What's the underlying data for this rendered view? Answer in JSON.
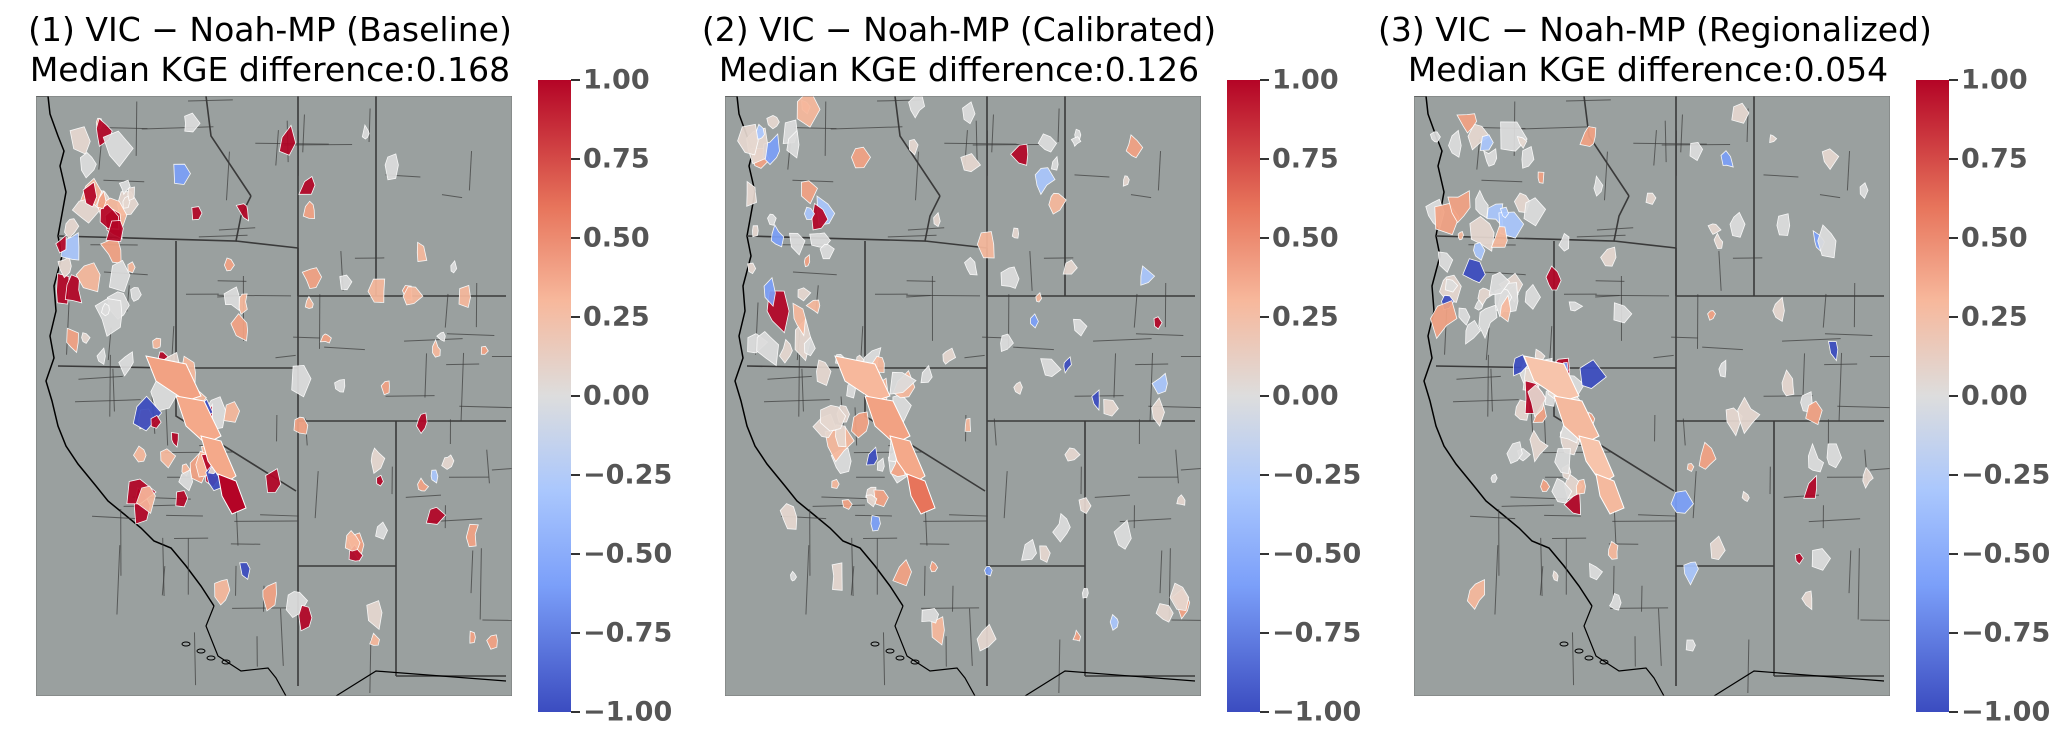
{
  "figure": {
    "panels": [
      {
        "title": "(1) VIC − Noah-MP (Baseline)",
        "subtitle": "Median KGE difference:0.168",
        "median_kge_difference": 0.168
      },
      {
        "title": "(2) VIC − Noah-MP (Calibrated)",
        "subtitle": "Median KGE difference:0.126",
        "median_kge_difference": 0.126
      },
      {
        "title": "(3) VIC − Noah-MP (Regionalized)",
        "subtitle": "Median KGE difference:0.054",
        "median_kge_difference": 0.054
      }
    ],
    "colorbar": {
      "colormap": "coolwarm",
      "range": [
        -1.0,
        1.0
      ],
      "ticks": [
        "1.00",
        "0.75",
        "0.50",
        "0.25",
        "0.00",
        "−0.25",
        "−0.50",
        "−0.75",
        "−1.00"
      ],
      "colors": {
        "high": "#b40426",
        "mid": "#dddddd",
        "low": "#3b4cc0"
      }
    },
    "map_colors": {
      "background": "#9aa09f",
      "boundary": "#3a3a3a"
    }
  }
}
